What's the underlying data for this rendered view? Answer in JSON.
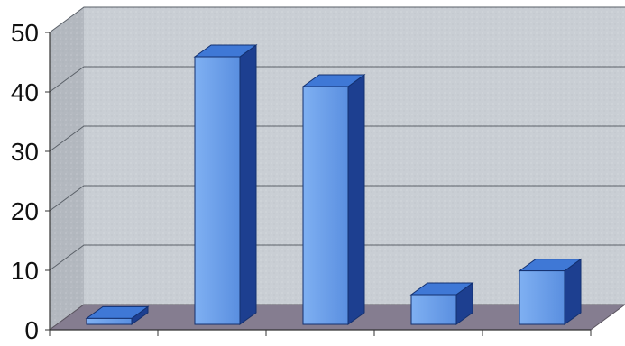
{
  "chart_data": {
    "type": "bar",
    "style": "3d-column",
    "categories": [
      "",
      "",
      "",
      "",
      ""
    ],
    "values": [
      1,
      45,
      40,
      5,
      9
    ],
    "title": "",
    "xlabel": "",
    "ylabel": "",
    "ylim": [
      0,
      50
    ],
    "y_ticks": [
      "0",
      "10",
      "20",
      "30",
      "40",
      "50"
    ],
    "grid": true,
    "legend": "none"
  },
  "colors": {
    "bar_front": "#5f97e6",
    "bar_top": "#3f78d6",
    "bar_side": "#1d3f90",
    "bar_outline": "#13306f",
    "back_wall": "#c9ced4",
    "side_wall": "#b3b8bf",
    "floor": "#857d90",
    "gridline": "#5a6068",
    "axis_text": "#111111"
  }
}
